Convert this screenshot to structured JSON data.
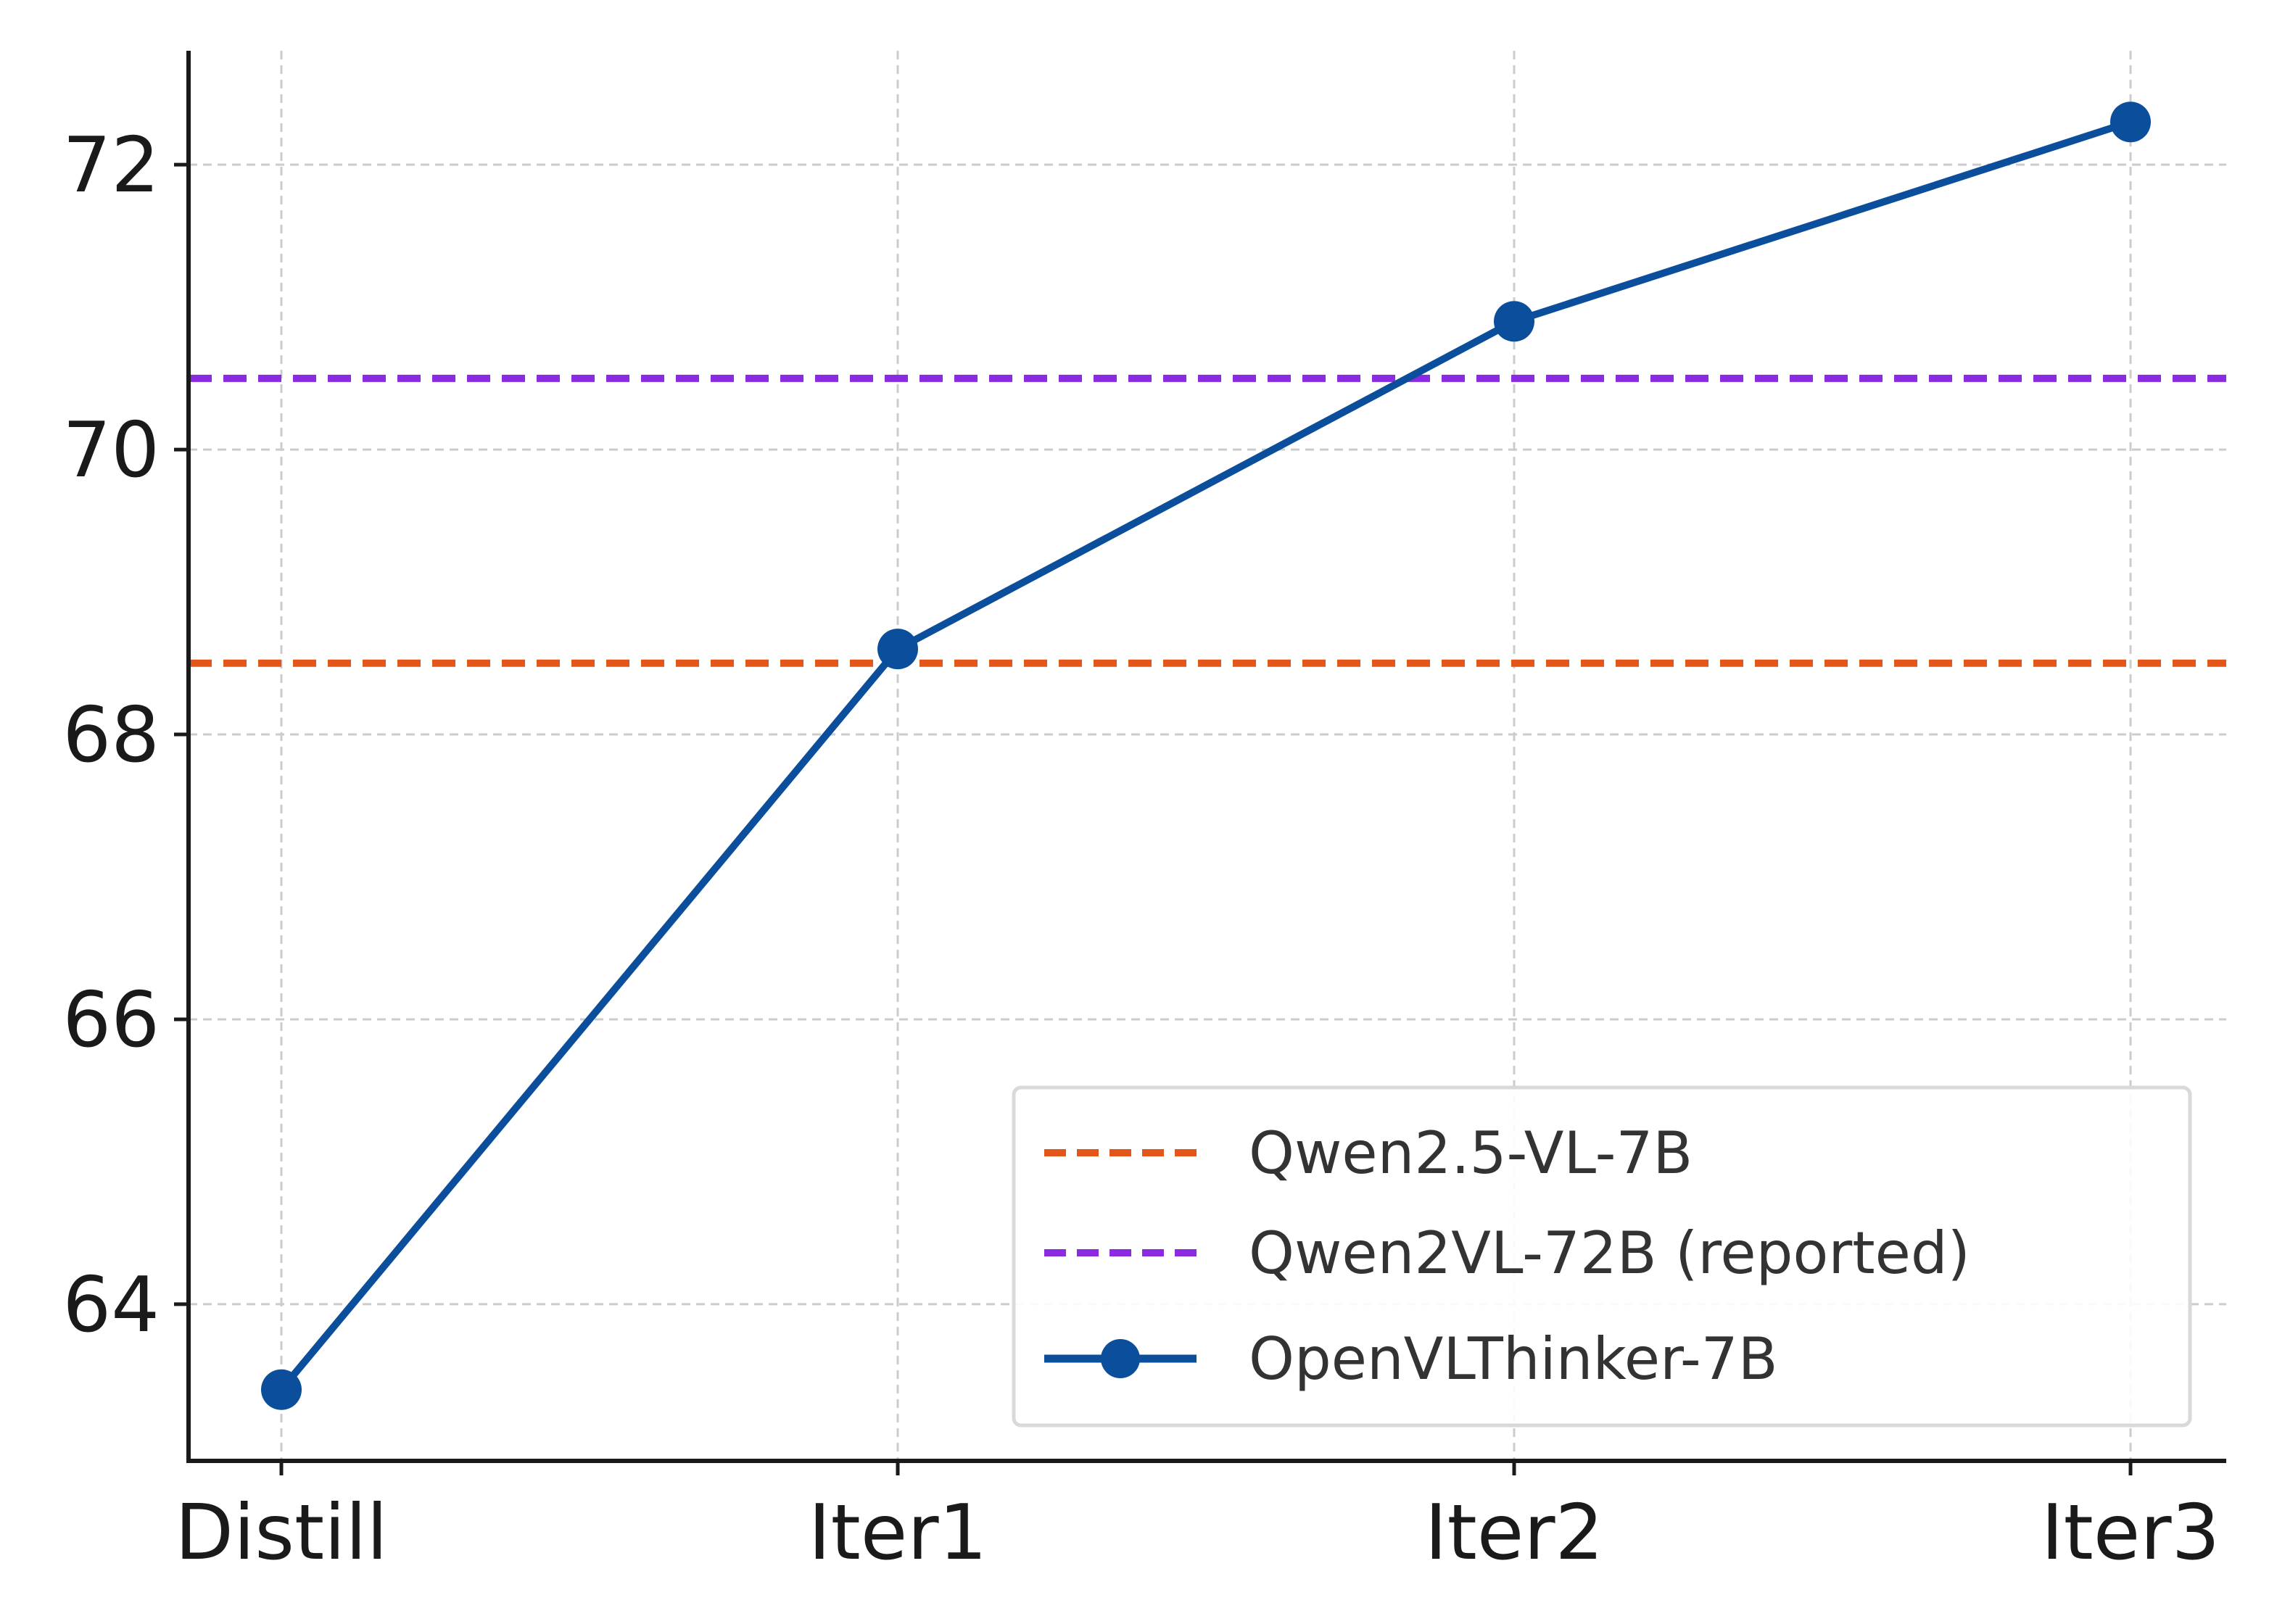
{
  "chart_data": {
    "type": "line",
    "categories": [
      "Distill",
      "Iter1",
      "Iter2",
      "Iter3"
    ],
    "ylim": [
      62.9,
      72.8
    ],
    "yticks": [
      64,
      66,
      68,
      70,
      72
    ],
    "ytick_labels": [
      "64",
      "66",
      "68",
      "70",
      "72"
    ],
    "grid": true,
    "legend_position": "lower-right",
    "series": [
      {
        "name": "OpenVLThinker-7B",
        "values": [
          63.4,
          68.6,
          70.9,
          72.3
        ],
        "color": "#0b4f9c",
        "style": "solid-with-markers"
      }
    ],
    "reference_lines": [
      {
        "name": "Qwen2.5-VL-7B",
        "value": 68.5,
        "color": "#e2561a",
        "style": "dashed"
      },
      {
        "name": "Qwen2VL-72B (reported)",
        "value": 70.5,
        "color": "#8a2be2",
        "style": "dashed"
      }
    ],
    "legend": [
      "Qwen2.5-VL-7B",
      "Qwen2VL-72B (reported)",
      "OpenVLThinker-7B"
    ]
  }
}
